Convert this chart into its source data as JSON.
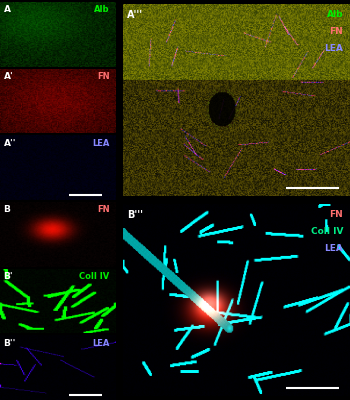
{
  "figure_width": 3.5,
  "figure_height": 4.0,
  "dpi": 100,
  "background_color": "#000000",
  "label_A": "A",
  "label_Ap": "A'",
  "label_App": "A''",
  "label_Appp": "A'''",
  "label_B": "B",
  "label_Bp": "B'",
  "label_Bpp": "B''",
  "label_Bppp": "B'''",
  "color_green": "#00ee00",
  "color_red": "#ff7070",
  "color_blue": "#8888ff",
  "color_cyan": "#00ee88",
  "color_white": "#ffffff"
}
